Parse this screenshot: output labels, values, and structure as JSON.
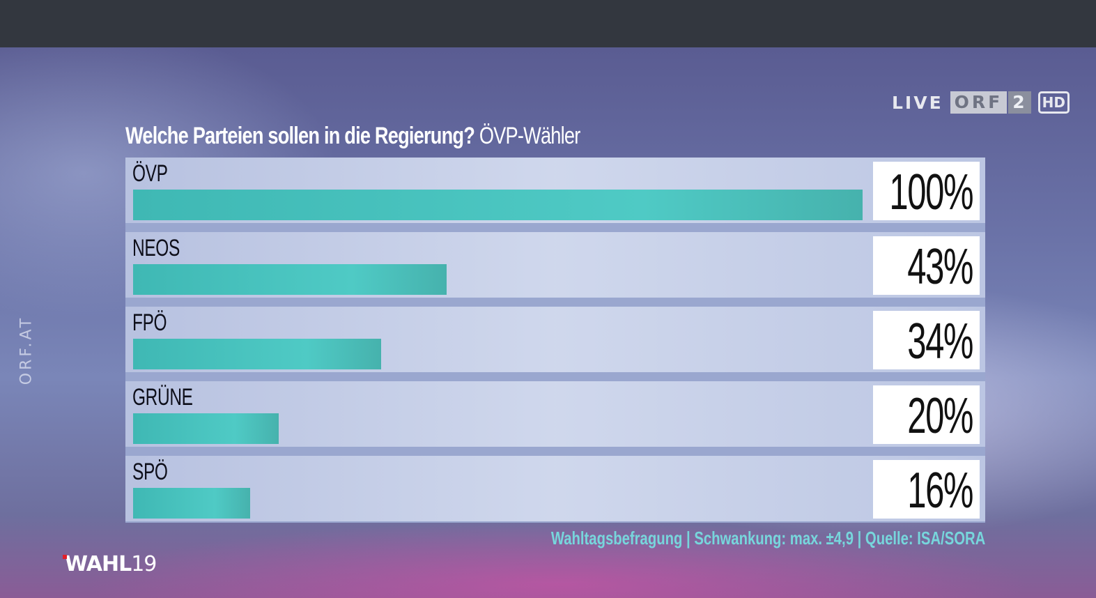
{
  "broadcast": {
    "live": "LIVE",
    "channel": "ORF",
    "channel_number": "2",
    "hd": "HD",
    "side_logo": "ORF.AT",
    "event_logo": "WAHL",
    "event_year": "19"
  },
  "chart_data": {
    "type": "bar",
    "title": "Welche Parteien sollen in die Regierung?",
    "subtitle": "ÖVP-Wähler",
    "categories": [
      "ÖVP",
      "NEOS",
      "FPÖ",
      "GRÜNE",
      "SPÖ"
    ],
    "values": [
      100,
      43,
      34,
      20,
      16
    ],
    "value_labels": [
      "100%",
      "43%",
      "34%",
      "20%",
      "16%"
    ],
    "ylim": [
      0,
      100
    ],
    "orientation": "horizontal",
    "bar_color": "#4fcac5",
    "grid": false,
    "legend": "none",
    "source": "Wahltagsbefragung | Schwankung: max. ±4,9 | Quelle: ISA/SORA"
  }
}
